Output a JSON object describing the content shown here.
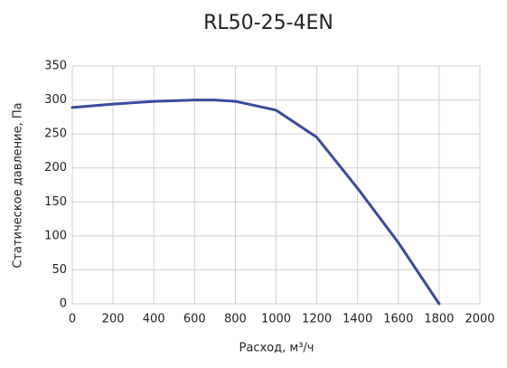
{
  "chart_data": {
    "type": "line",
    "title": "RL50-25-4EN",
    "x_label": "Расход, м³/ч",
    "y_label": "Статическое давление, Па",
    "series": [
      {
        "name": "RL50-25-4EN",
        "color": "#3a4a9e",
        "x": [
          0,
          200,
          400,
          600,
          700,
          800,
          1000,
          1200,
          1400,
          1600,
          1800
        ],
        "values": [
          289,
          294,
          298,
          300,
          300,
          298,
          285,
          245,
          170,
          90,
          0
        ]
      }
    ],
    "xlim": [
      0,
      2000
    ],
    "xticks": [
      0,
      200,
      400,
      600,
      800,
      1000,
      1200,
      1400,
      1600,
      1800,
      2000
    ],
    "ylim": [
      0,
      350
    ],
    "yticks": [
      0,
      50,
      100,
      150,
      200,
      250,
      300,
      350
    ],
    "grid": true
  }
}
